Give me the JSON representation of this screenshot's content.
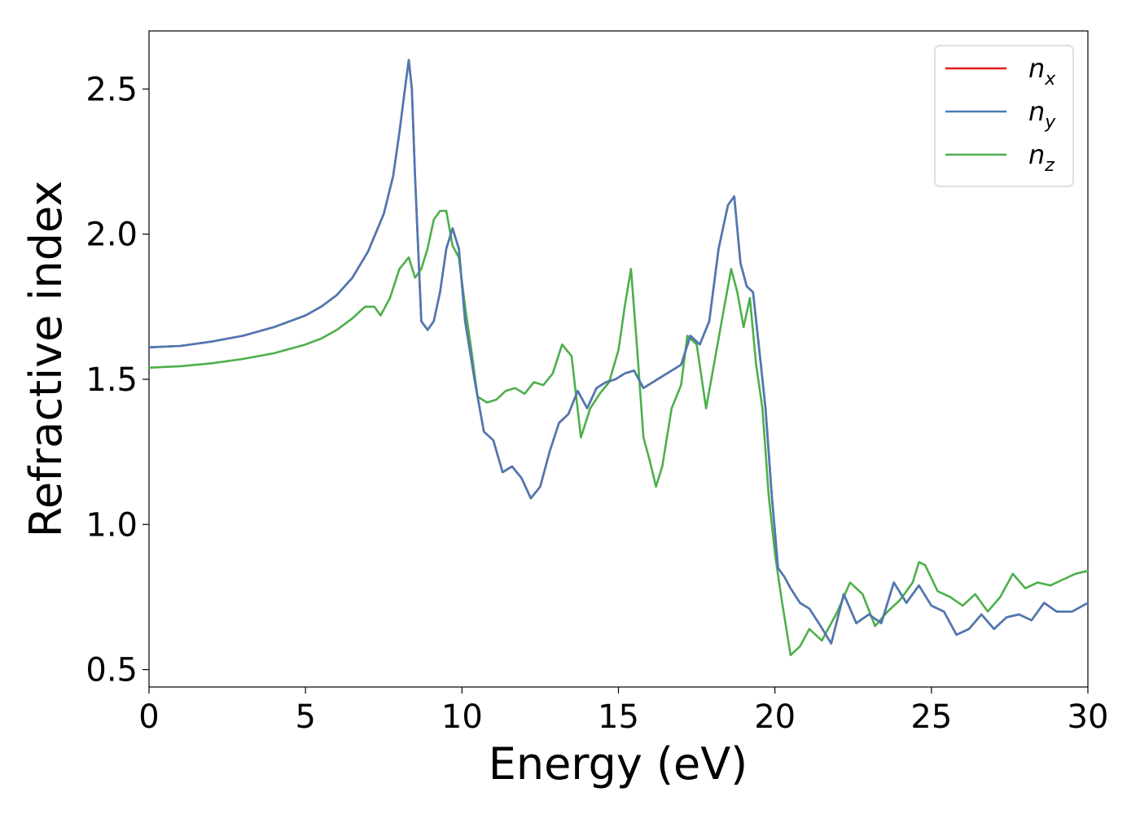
{
  "chart_data": {
    "type": "line",
    "title": "",
    "xlabel": "Energy (eV)",
    "ylabel": "Refractive index",
    "xlim": [
      0,
      30
    ],
    "ylim": [
      0.44,
      2.7
    ],
    "xticks": [
      0,
      5,
      10,
      15,
      20,
      25,
      30
    ],
    "xtick_labels": [
      "0",
      "5",
      "10",
      "15",
      "20",
      "25",
      "30"
    ],
    "yticks": [
      0.5,
      1.0,
      1.5,
      2.0,
      2.5
    ],
    "ytick_labels": [
      "0.5",
      "1.0",
      "1.5",
      "2.0",
      "2.5"
    ],
    "grid": false,
    "legend_position": "top-right",
    "series": [
      {
        "name": "n_x",
        "label_main": "n",
        "label_sub": "x",
        "color": "#e41a1c",
        "x": [
          0,
          1,
          2,
          3,
          4,
          5,
          5.5,
          6,
          6.5,
          7,
          7.5,
          7.8,
          8.0,
          8.2,
          8.3,
          8.4,
          8.5,
          8.7,
          8.9,
          9.1,
          9.3,
          9.5,
          9.7,
          9.9,
          10.1,
          10.4,
          10.7,
          11.0,
          11.3,
          11.6,
          11.9,
          12.2,
          12.5,
          12.8,
          13.1,
          13.4,
          13.7,
          14.0,
          14.3,
          14.6,
          14.9,
          15.2,
          15.5,
          15.8,
          16.1,
          16.4,
          16.7,
          17.0,
          17.3,
          17.6,
          17.9,
          18.2,
          18.5,
          18.7,
          18.9,
          19.1,
          19.3,
          19.5,
          19.7,
          19.9,
          20.1,
          20.3,
          20.5,
          20.8,
          21.1,
          21.4,
          21.8,
          22.2,
          22.6,
          23.0,
          23.4,
          23.8,
          24.2,
          24.6,
          25.0,
          25.4,
          25.8,
          26.2,
          26.6,
          27.0,
          27.4,
          27.8,
          28.2,
          28.6,
          29.0,
          29.5,
          30.0
        ],
        "y": [
          1.61,
          1.615,
          1.63,
          1.65,
          1.68,
          1.72,
          1.75,
          1.79,
          1.85,
          1.94,
          2.07,
          2.2,
          2.35,
          2.52,
          2.6,
          2.5,
          2.2,
          1.7,
          1.67,
          1.7,
          1.8,
          1.95,
          2.02,
          1.95,
          1.7,
          1.5,
          1.32,
          1.29,
          1.18,
          1.2,
          1.16,
          1.09,
          1.13,
          1.25,
          1.35,
          1.38,
          1.46,
          1.4,
          1.47,
          1.49,
          1.5,
          1.52,
          1.53,
          1.47,
          1.49,
          1.51,
          1.53,
          1.55,
          1.65,
          1.62,
          1.7,
          1.95,
          2.1,
          2.13,
          1.9,
          1.82,
          1.8,
          1.6,
          1.4,
          1.1,
          0.85,
          0.82,
          0.78,
          0.73,
          0.71,
          0.66,
          0.59,
          0.76,
          0.66,
          0.69,
          0.66,
          0.8,
          0.73,
          0.79,
          0.72,
          0.7,
          0.62,
          0.64,
          0.69,
          0.64,
          0.68,
          0.69,
          0.67,
          0.73,
          0.7,
          0.7,
          0.73
        ]
      },
      {
        "name": "n_y",
        "label_main": "n",
        "label_sub": "y",
        "color": "#4a7ab5",
        "x": [
          0,
          1,
          2,
          3,
          4,
          5,
          5.5,
          6,
          6.5,
          7,
          7.5,
          7.8,
          8.0,
          8.2,
          8.3,
          8.4,
          8.5,
          8.7,
          8.9,
          9.1,
          9.3,
          9.5,
          9.7,
          9.9,
          10.1,
          10.4,
          10.7,
          11.0,
          11.3,
          11.6,
          11.9,
          12.2,
          12.5,
          12.8,
          13.1,
          13.4,
          13.7,
          14.0,
          14.3,
          14.6,
          14.9,
          15.2,
          15.5,
          15.8,
          16.1,
          16.4,
          16.7,
          17.0,
          17.3,
          17.6,
          17.9,
          18.2,
          18.5,
          18.7,
          18.9,
          19.1,
          19.3,
          19.5,
          19.7,
          19.9,
          20.1,
          20.3,
          20.5,
          20.8,
          21.1,
          21.4,
          21.8,
          22.2,
          22.6,
          23.0,
          23.4,
          23.8,
          24.2,
          24.6,
          25.0,
          25.4,
          25.8,
          26.2,
          26.6,
          27.0,
          27.4,
          27.8,
          28.2,
          28.6,
          29.0,
          29.5,
          30.0
        ],
        "y": [
          1.61,
          1.615,
          1.63,
          1.65,
          1.68,
          1.72,
          1.75,
          1.79,
          1.85,
          1.94,
          2.07,
          2.2,
          2.35,
          2.52,
          2.6,
          2.5,
          2.2,
          1.7,
          1.67,
          1.7,
          1.8,
          1.95,
          2.02,
          1.95,
          1.7,
          1.5,
          1.32,
          1.29,
          1.18,
          1.2,
          1.16,
          1.09,
          1.13,
          1.25,
          1.35,
          1.38,
          1.46,
          1.4,
          1.47,
          1.49,
          1.5,
          1.52,
          1.53,
          1.47,
          1.49,
          1.51,
          1.53,
          1.55,
          1.65,
          1.62,
          1.7,
          1.95,
          2.1,
          2.13,
          1.9,
          1.82,
          1.8,
          1.6,
          1.4,
          1.1,
          0.85,
          0.82,
          0.78,
          0.73,
          0.71,
          0.66,
          0.59,
          0.76,
          0.66,
          0.69,
          0.66,
          0.8,
          0.73,
          0.79,
          0.72,
          0.7,
          0.62,
          0.64,
          0.69,
          0.64,
          0.68,
          0.69,
          0.67,
          0.73,
          0.7,
          0.7,
          0.73
        ]
      },
      {
        "name": "n_z",
        "label_main": "n",
        "label_sub": "z",
        "color": "#4daf4a",
        "x": [
          0,
          1,
          2,
          3,
          4,
          5,
          5.5,
          6,
          6.5,
          6.9,
          7.2,
          7.4,
          7.7,
          8.0,
          8.3,
          8.5,
          8.7,
          8.9,
          9.1,
          9.3,
          9.5,
          9.7,
          9.9,
          10.1,
          10.3,
          10.5,
          10.8,
          11.1,
          11.4,
          11.7,
          12.0,
          12.3,
          12.6,
          12.9,
          13.2,
          13.5,
          13.8,
          14.1,
          14.4,
          14.7,
          15.0,
          15.2,
          15.4,
          15.6,
          15.8,
          16.0,
          16.2,
          16.4,
          16.7,
          17.0,
          17.2,
          17.5,
          17.8,
          18.0,
          18.3,
          18.6,
          18.8,
          19.0,
          19.2,
          19.4,
          19.6,
          19.8,
          20.0,
          20.2,
          20.5,
          20.8,
          21.1,
          21.5,
          22.0,
          22.4,
          22.8,
          23.2,
          23.6,
          24.0,
          24.4,
          24.6,
          24.8,
          25.2,
          25.6,
          26.0,
          26.4,
          26.8,
          27.2,
          27.6,
          28.0,
          28.4,
          28.8,
          29.2,
          29.6,
          30.0
        ],
        "y": [
          1.54,
          1.545,
          1.555,
          1.57,
          1.59,
          1.62,
          1.64,
          1.67,
          1.71,
          1.75,
          1.75,
          1.72,
          1.78,
          1.88,
          1.92,
          1.85,
          1.88,
          1.95,
          2.05,
          2.08,
          2.08,
          1.96,
          1.92,
          1.75,
          1.6,
          1.44,
          1.42,
          1.43,
          1.46,
          1.47,
          1.45,
          1.49,
          1.48,
          1.52,
          1.62,
          1.58,
          1.3,
          1.4,
          1.45,
          1.49,
          1.6,
          1.75,
          1.88,
          1.6,
          1.3,
          1.22,
          1.13,
          1.2,
          1.4,
          1.48,
          1.65,
          1.62,
          1.4,
          1.52,
          1.7,
          1.88,
          1.8,
          1.68,
          1.78,
          1.55,
          1.4,
          1.1,
          0.9,
          0.75,
          0.55,
          0.58,
          0.64,
          0.6,
          0.7,
          0.8,
          0.76,
          0.65,
          0.7,
          0.74,
          0.8,
          0.87,
          0.86,
          0.77,
          0.75,
          0.72,
          0.76,
          0.7,
          0.75,
          0.83,
          0.78,
          0.8,
          0.79,
          0.81,
          0.83,
          0.84
        ]
      }
    ]
  }
}
